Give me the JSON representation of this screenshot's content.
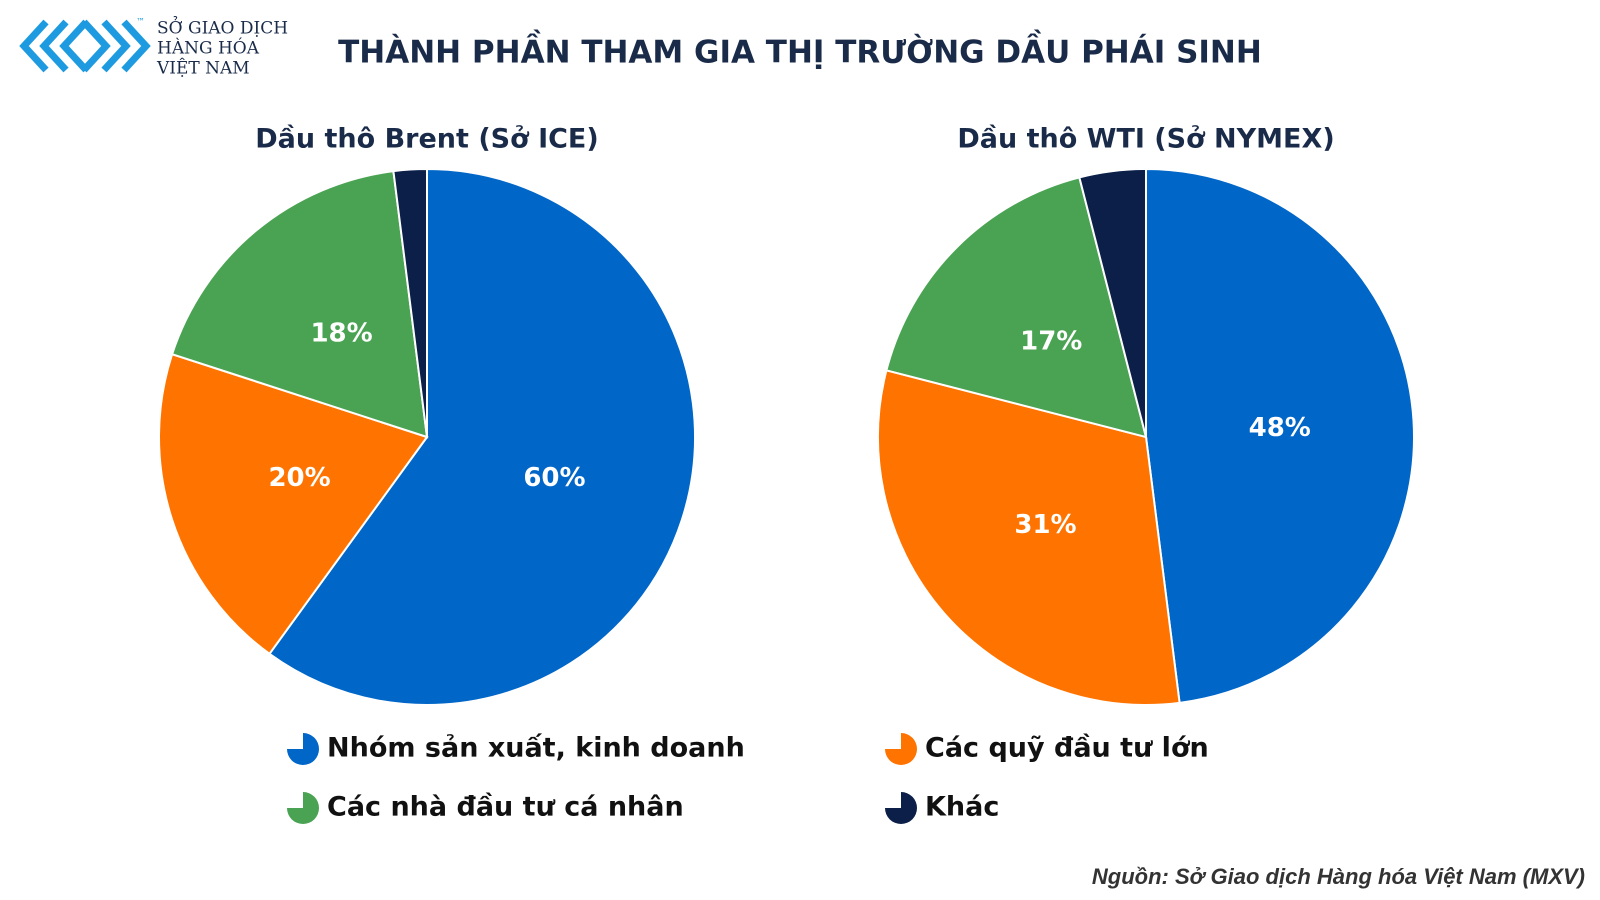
{
  "header": {
    "logo_lines": [
      "SỞ GIAO DỊCH",
      "HÀNG HÓA",
      "VIỆT NAM"
    ],
    "trademark": "™",
    "title": "THÀNH PHẦN THAM GIA THỊ TRƯỜNG DẦU PHÁI SINH"
  },
  "chart_data": [
    {
      "type": "pie",
      "title": "Dầu thô Brent (Sở ICE)",
      "categories": [
        "Nhóm sản xuất, kinh doanh",
        "Các quỹ đầu tư lớn",
        "Các nhà đầu tư cá nhân",
        "Khác"
      ],
      "values": [
        60,
        20,
        18,
        2
      ],
      "value_labels": [
        "60%",
        "20%",
        "18%",
        null
      ],
      "colors": [
        "#0066c8",
        "#ff7300",
        "#4aa352",
        "#0b1f48"
      ]
    },
    {
      "type": "pie",
      "title": "Dầu thô WTI (Sở NYMEX)",
      "categories": [
        "Nhóm sản xuất, kinh doanh",
        "Các quỹ đầu tư lớn",
        "Các nhà đầu tư cá nhân",
        "Khác"
      ],
      "values": [
        48,
        31,
        17,
        4
      ],
      "value_labels": [
        "48%",
        "31%",
        "17%",
        null
      ],
      "colors": [
        "#0066c8",
        "#ff7300",
        "#4aa352",
        "#0b1f48"
      ]
    }
  ],
  "source": "Nguồn: Sở Giao dịch Hàng hóa Việt Nam (MXV)"
}
